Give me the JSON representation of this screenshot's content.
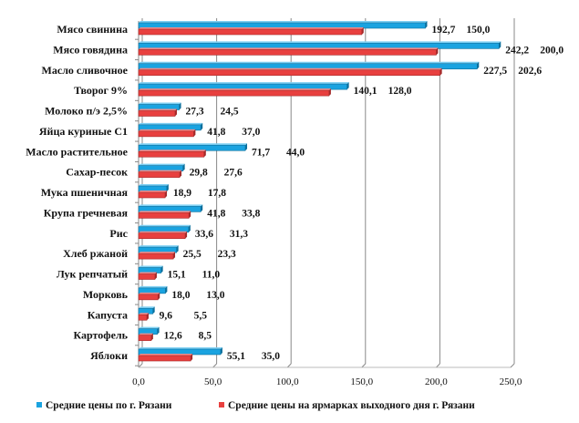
{
  "chart_data": {
    "type": "bar",
    "orientation": "horizontal",
    "style": "3d-clustered",
    "categories": [
      "Мясо свинина",
      "Мясо говядина",
      "Масло сливочное",
      "Творог 9%",
      "Молоко п/э 2,5%",
      "Яйца куриные С1",
      "Масло растительное",
      "Сахар-песок",
      "Мука пшеничная",
      "Крупа гречневая",
      "Рис",
      "Хлеб ржаной",
      "Лук репчатый",
      "Морковь",
      "Капуста",
      "Картофель",
      "Яблоки"
    ],
    "series": [
      {
        "name": "Средние цены по г. Рязани",
        "color": "#1aa3e0",
        "values": [
          192.7,
          242.2,
          227.5,
          140.1,
          27.3,
          41.8,
          71.7,
          29.8,
          18.9,
          41.8,
          33.6,
          25.5,
          15.1,
          18.0,
          9.6,
          12.6,
          55.1
        ],
        "labels": [
          "192,7",
          "242,2",
          "227,5",
          "140,1",
          "27,3",
          "41,8",
          "71,7",
          "29,8",
          "18,9",
          "41,8",
          "33,6",
          "25,5",
          "15,1",
          "18,0",
          "9,6",
          "12,6",
          "55,1"
        ]
      },
      {
        "name": "Средние цены на ярмарках выходного дня г. Рязани",
        "color": "#e8403f",
        "values": [
          150.0,
          200.0,
          202.6,
          128.0,
          24.5,
          37.0,
          44.0,
          27.6,
          17.8,
          33.8,
          31.3,
          23.3,
          11.0,
          13.0,
          5.5,
          8.5,
          35.0
        ],
        "labels": [
          "150,0",
          "200,0",
          "202,6",
          "128,0",
          "24,5",
          "37,0",
          "44,0",
          "27,6",
          "17,8",
          "33,8",
          "31,3",
          "23,3",
          "11,0",
          "13,0",
          "5,5",
          "8,5",
          "35,0"
        ]
      }
    ],
    "xlim": [
      0,
      250
    ],
    "xticks": [
      "0,0",
      "50,0",
      "100,0",
      "150,0",
      "200,0",
      "250,0"
    ],
    "xtick_values": [
      0,
      50,
      100,
      150,
      200,
      250
    ],
    "grid": "vertical",
    "legend": "bottom"
  }
}
